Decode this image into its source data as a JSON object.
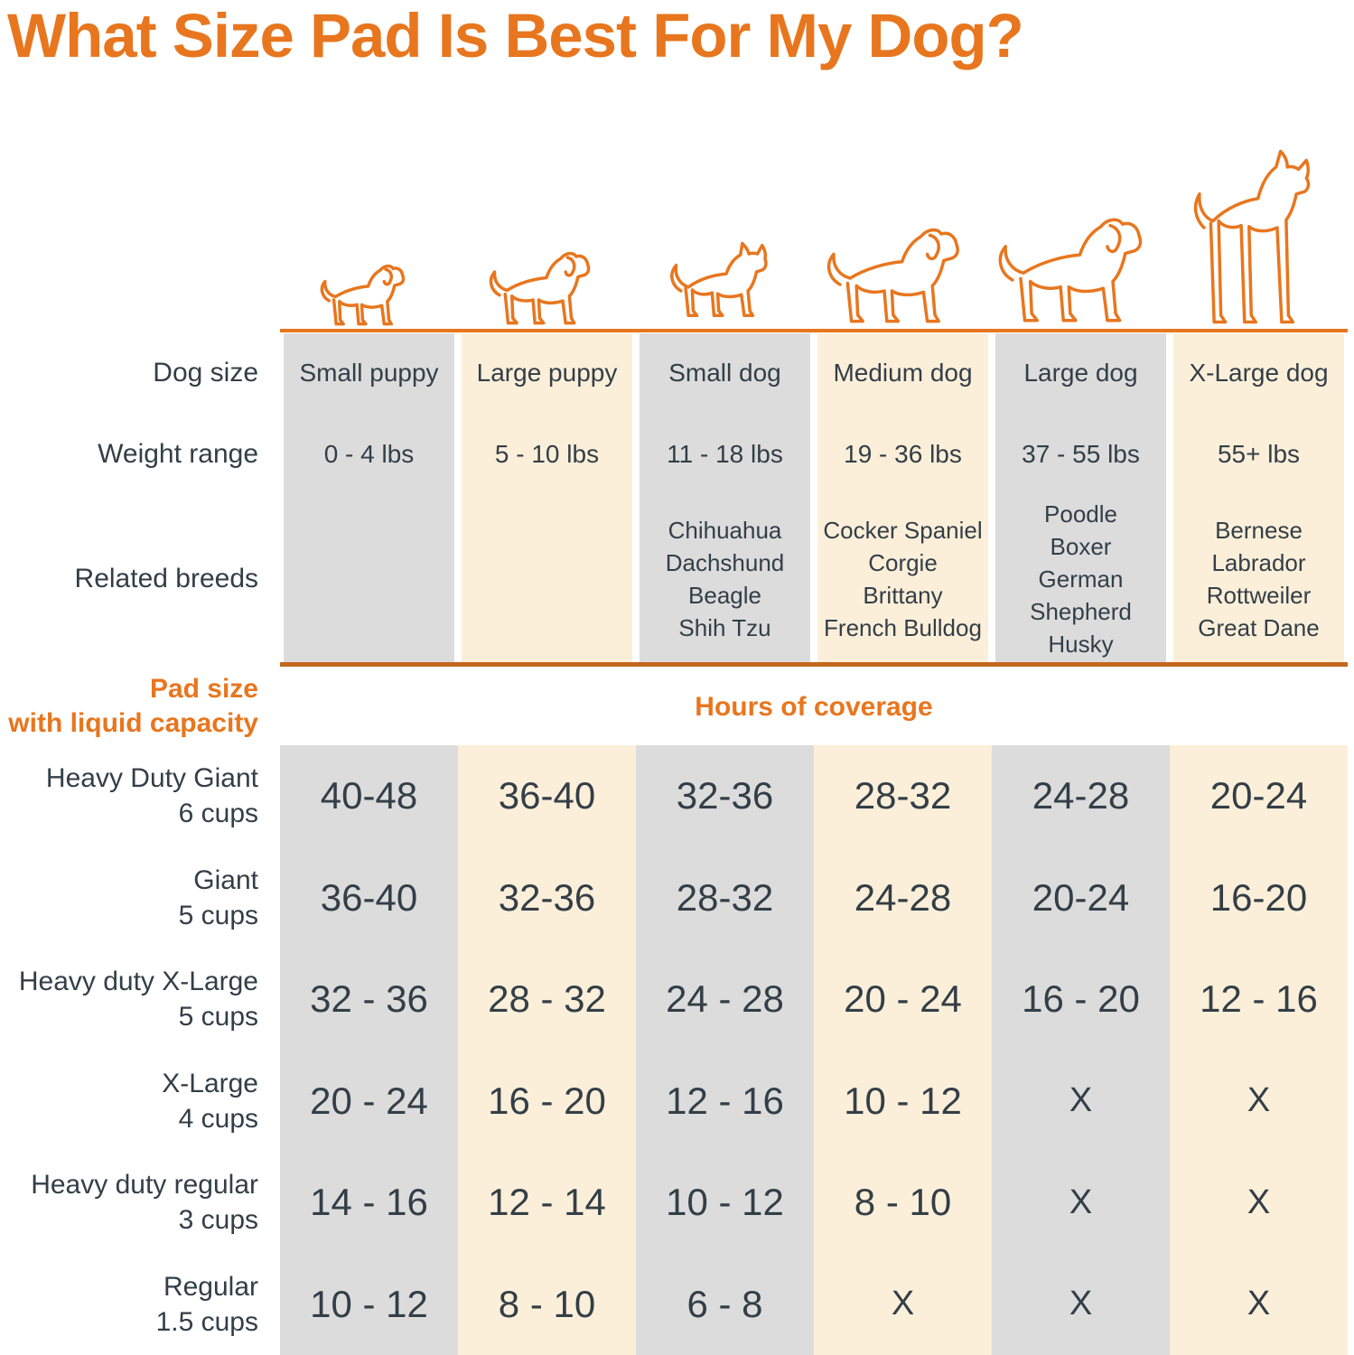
{
  "header": {
    "title": "What Size Pad Is Best For My Dog?"
  },
  "colors": {
    "accent": "#E8761E",
    "rule": "#C2681C",
    "column_gray": "#DCDCDC",
    "column_cream": "#FCEFD9",
    "text_dark": "#333E47"
  },
  "row_labels": {
    "dog_size": "Dog size",
    "weight_range": "Weight range",
    "related_breeds": "Related breeds"
  },
  "pad_size_label": {
    "line1": "Pad size",
    "line2": "with liquid capacity"
  },
  "chart_data": {
    "type": "table",
    "title": "What Size Pad Is Best For My Dog?",
    "hours_header": "Hours of coverage",
    "columns": [
      {
        "dog_size": "Small puppy",
        "weight": "0 - 4 lbs",
        "breeds": [],
        "icon": "small-puppy-icon",
        "shade": "gray"
      },
      {
        "dog_size": "Large puppy",
        "weight": "5 - 10 lbs",
        "breeds": [],
        "icon": "large-puppy-icon",
        "shade": "cream"
      },
      {
        "dog_size": "Small dog",
        "weight": "11 - 18 lbs",
        "breeds": [
          "Chihuahua",
          "Dachshund",
          "Beagle",
          "Shih Tzu"
        ],
        "icon": "small-dog-icon",
        "shade": "gray"
      },
      {
        "dog_size": "Medium dog",
        "weight": "19 - 36 lbs",
        "breeds": [
          "Cocker Spaniel",
          "Corgie",
          "Brittany",
          "French Bulldog"
        ],
        "icon": "medium-dog-icon",
        "shade": "cream"
      },
      {
        "dog_size": "Large dog",
        "weight": "37 - 55 lbs",
        "breeds": [
          "Poodle",
          "Boxer",
          "German Shepherd",
          "Husky"
        ],
        "icon": "large-dog-icon",
        "shade": "gray"
      },
      {
        "dog_size": "X-Large dog",
        "weight": "55+ lbs",
        "breeds": [
          "Bernese",
          "Labrador",
          "Rottweiler",
          "Great Dane"
        ],
        "icon": "x-large-dog-icon",
        "shade": "cream"
      }
    ],
    "pad_rows": [
      {
        "name": "Heavy Duty Giant",
        "capacity": "6 cups",
        "values": [
          "40-48",
          "36-40",
          "32-36",
          "28-32",
          "24-28",
          "20-24"
        ]
      },
      {
        "name": "Giant",
        "capacity": "5 cups",
        "values": [
          "36-40",
          "32-36",
          "28-32",
          "24-28",
          "20-24",
          "16-20"
        ]
      },
      {
        "name": "Heavy duty X-Large",
        "capacity": "5 cups",
        "values": [
          "32 - 36",
          "28 - 32",
          "24 - 28",
          "20 - 24",
          "16 - 20",
          "12 - 16"
        ]
      },
      {
        "name": "X-Large",
        "capacity": "4 cups",
        "values": [
          "20 - 24",
          "16 - 20",
          "12 - 16",
          "10 - 12",
          "X",
          "X"
        ]
      },
      {
        "name": "Heavy duty regular",
        "capacity": "3 cups",
        "values": [
          "14 - 16",
          "12 - 14",
          "10 - 12",
          "8 - 10",
          "X",
          "X"
        ]
      },
      {
        "name": "Regular",
        "capacity": "1.5 cups",
        "values": [
          "10 - 12",
          "8 - 10",
          "6 - 8",
          "X",
          "X",
          "X"
        ]
      }
    ]
  }
}
